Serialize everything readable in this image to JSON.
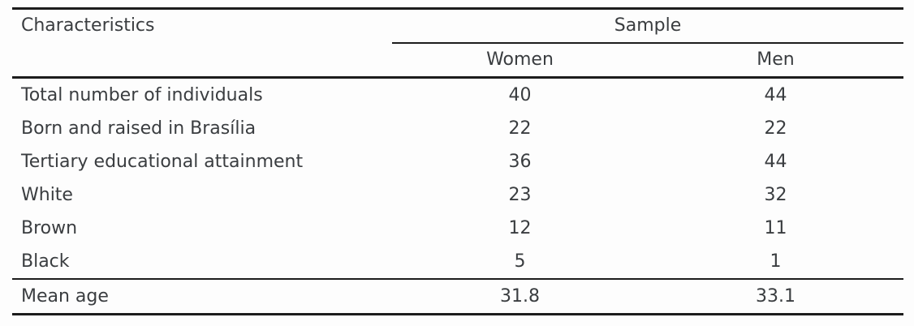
{
  "table": {
    "col1_header": "Characteristics",
    "group_header": "Sample",
    "sub_headers": [
      "Women",
      "Men"
    ],
    "rows": [
      {
        "label": "Total number of individuals",
        "women": "40",
        "men": "44"
      },
      {
        "label": "Born and raised in Brasília",
        "women": "22",
        "men": "22"
      },
      {
        "label": "Tertiary educational attainment",
        "women": "36",
        "men": "44"
      },
      {
        "label": "White",
        "women": "23",
        "men": "32"
      },
      {
        "label": "Brown",
        "women": "12",
        "men": "11"
      },
      {
        "label": "Black",
        "women": "5",
        "men": "1"
      }
    ],
    "footer_row": {
      "label": "Mean age",
      "women": "31.8",
      "men": "33.1"
    }
  },
  "colors": {
    "text": "#3a3d40",
    "rule": "#1c1c1c",
    "background": "#fdfdfd"
  }
}
